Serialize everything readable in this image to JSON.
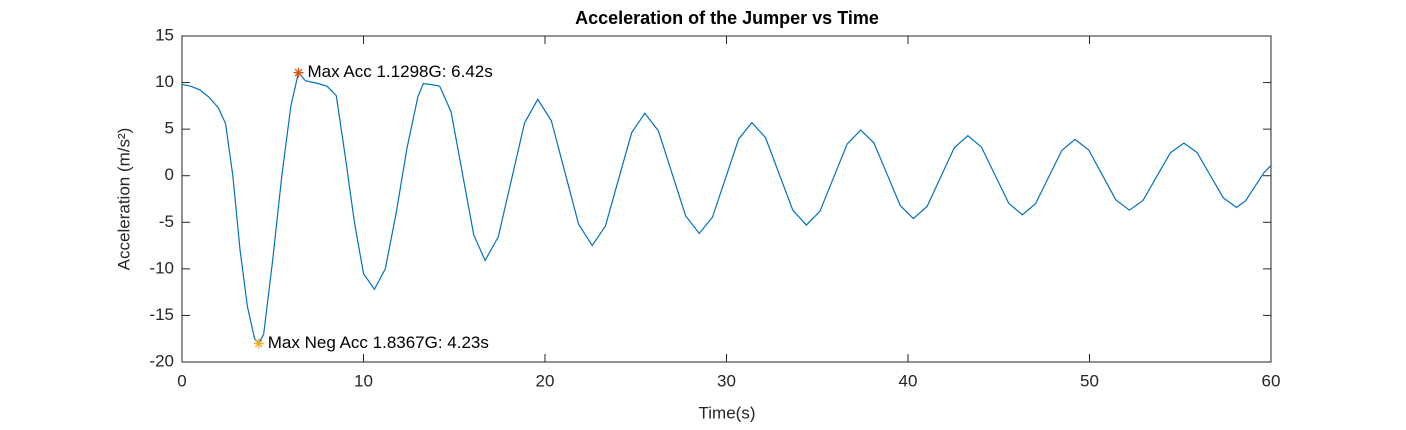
{
  "chart_data": {
    "type": "line",
    "title": "Acceleration of the Jumper vs Time",
    "xlabel": "Time(s)",
    "ylabel": "Acceleration (m/s²)",
    "xlim": [
      0,
      60
    ],
    "xticks": [
      0,
      10,
      20,
      30,
      40,
      50,
      60
    ],
    "ylim": [
      -20,
      15
    ],
    "yticks": [
      -20,
      -15,
      -10,
      -5,
      0,
      5,
      10,
      15
    ],
    "grid": false,
    "series": [
      {
        "color": "#0072bd",
        "x": [
          0,
          0.5,
          1,
          1.5,
          2,
          2.4,
          2.8,
          3.2,
          3.6,
          4.0,
          4.23,
          4.5,
          5.0,
          5.5,
          6.0,
          6.42,
          6.8,
          7.5,
          8.0,
          8.5,
          9.0,
          9.5,
          10.0,
          10.6,
          11.2,
          11.8,
          12.4,
          13.0,
          13.3,
          14.0,
          14.2,
          14.825,
          15.45,
          16.075,
          16.7,
          17.425,
          18.15,
          18.875,
          19.6,
          20.35,
          21.1,
          21.85,
          22.6,
          23.325,
          24.05,
          24.775,
          25.5,
          26.25,
          27.0,
          27.75,
          28.5,
          29.225,
          29.95,
          30.675,
          31.4,
          32.15,
          32.9,
          33.65,
          34.4,
          35.15,
          35.9,
          36.65,
          37.4,
          38.125,
          38.85,
          39.575,
          40.3,
          41.05,
          41.8,
          42.55,
          43.3,
          44.05,
          44.8,
          45.55,
          46.3,
          47.025,
          47.75,
          48.475,
          49.2,
          49.95,
          50.7,
          51.45,
          52.2,
          52.95,
          53.7,
          54.45,
          55.2,
          55.925,
          56.65,
          57.375,
          58.1,
          58.6,
          59.1,
          59.6,
          60
        ],
        "values": [
          9.8,
          9.6,
          9.2,
          8.4,
          7.3,
          5.6,
          0,
          -8,
          -14,
          -17.5,
          -18.0,
          -17,
          -9,
          0,
          7.5,
          11.07,
          10.2,
          9.9,
          9.6,
          8.6,
          2,
          -5,
          -10.5,
          -12.2,
          -10,
          -4,
          3,
          8.5,
          9.9,
          9.7,
          9.6,
          6.86,
          0.25,
          -6.36,
          -9.1,
          -6.57,
          -0.45,
          5.67,
          8.2,
          5.9,
          0.35,
          -5.2,
          -7.5,
          -5.42,
          -0.4,
          4.62,
          6.7,
          4.81,
          0.25,
          -4.31,
          -6.2,
          -4.46,
          -0.25,
          3.96,
          5.7,
          4.09,
          0.2,
          -3.69,
          -5.3,
          -3.81,
          -0.2,
          3.41,
          4.9,
          3.51,
          0.15,
          -3.21,
          -4.6,
          -3.3,
          -0.15,
          3.0,
          4.3,
          3.06,
          0.05,
          -2.96,
          -4.2,
          -3.01,
          -0.15,
          2.71,
          3.9,
          2.79,
          0.1,
          -2.59,
          -3.7,
          -2.65,
          -0.1,
          2.45,
          3.5,
          2.49,
          0.05,
          -2.39,
          -3.4,
          -2.7,
          -1.2,
          0.3,
          1.1
        ]
      }
    ],
    "markers": [
      {
        "x": 6.42,
        "y": 11.07,
        "label": "Max Acc 1.1298G: 6.42s",
        "color": "#d95319"
      },
      {
        "x": 4.23,
        "y": -18.02,
        "label": "Max Neg Acc 1.8367G: 4.23s",
        "color": "#edb120"
      }
    ]
  }
}
